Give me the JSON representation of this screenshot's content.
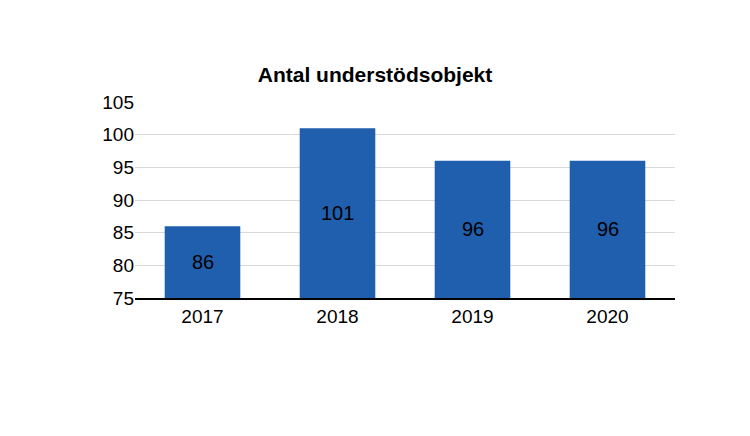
{
  "chart_data": {
    "type": "bar",
    "title": "Antal understödsobjekt",
    "categories": [
      "2017",
      "2018",
      "2019",
      "2020"
    ],
    "values": [
      86,
      101,
      96,
      96
    ],
    "color": "#1f5fae",
    "ylim": [
      75,
      105
    ],
    "yticks": [
      75,
      80,
      85,
      90,
      95,
      100,
      105
    ],
    "grid": true,
    "data_labels": true
  }
}
